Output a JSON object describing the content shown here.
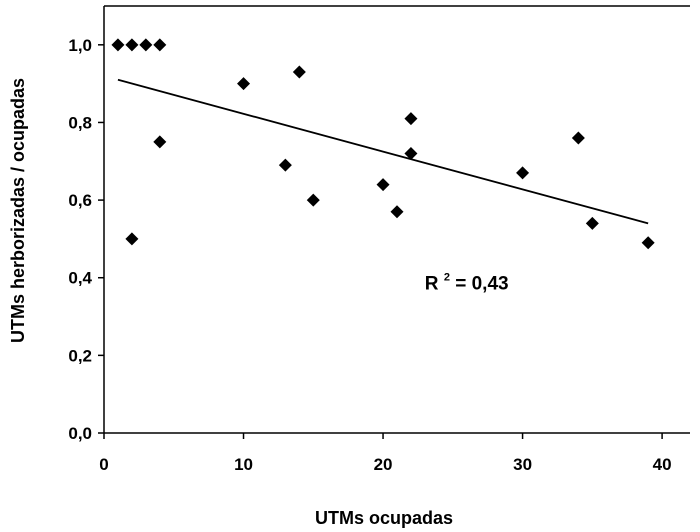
{
  "chart_data": {
    "type": "scatter",
    "title": "",
    "xlabel": "UTMs ocupadas",
    "ylabel": "UTMs herborizadas / ocupadas",
    "xlim": [
      0,
      42
    ],
    "ylim": [
      0,
      1.1
    ],
    "xticks": [
      0,
      10,
      20,
      30,
      40
    ],
    "yticks": [
      0.0,
      0.2,
      0.4,
      0.6,
      0.8,
      1.0
    ],
    "xtick_labels": [
      "0",
      "10",
      "20",
      "30",
      "40"
    ],
    "ytick_labels": [
      "0,0",
      "0,2",
      "0,4",
      "0,6",
      "0,8",
      "1,0"
    ],
    "grid": false,
    "points": [
      {
        "x": 1,
        "y": 1.0
      },
      {
        "x": 2,
        "y": 1.0
      },
      {
        "x": 3,
        "y": 1.0
      },
      {
        "x": 4,
        "y": 1.0
      },
      {
        "x": 2,
        "y": 0.5
      },
      {
        "x": 4,
        "y": 0.75
      },
      {
        "x": 10,
        "y": 0.9
      },
      {
        "x": 13,
        "y": 0.69
      },
      {
        "x": 14,
        "y": 0.93
      },
      {
        "x": 15,
        "y": 0.6
      },
      {
        "x": 20,
        "y": 0.64
      },
      {
        "x": 21,
        "y": 0.57
      },
      {
        "x": 22,
        "y": 0.81
      },
      {
        "x": 22,
        "y": 0.72
      },
      {
        "x": 30,
        "y": 0.67
      },
      {
        "x": 34,
        "y": 0.76
      },
      {
        "x": 35,
        "y": 0.54
      },
      {
        "x": 39,
        "y": 0.49
      }
    ],
    "trendline": {
      "x": [
        1,
        39
      ],
      "y": [
        0.91,
        0.54
      ]
    },
    "annotation": {
      "text_main": "R",
      "text_sup": "2",
      "text_rest": " = 0,43",
      "x": 25,
      "y": 0.37
    }
  }
}
